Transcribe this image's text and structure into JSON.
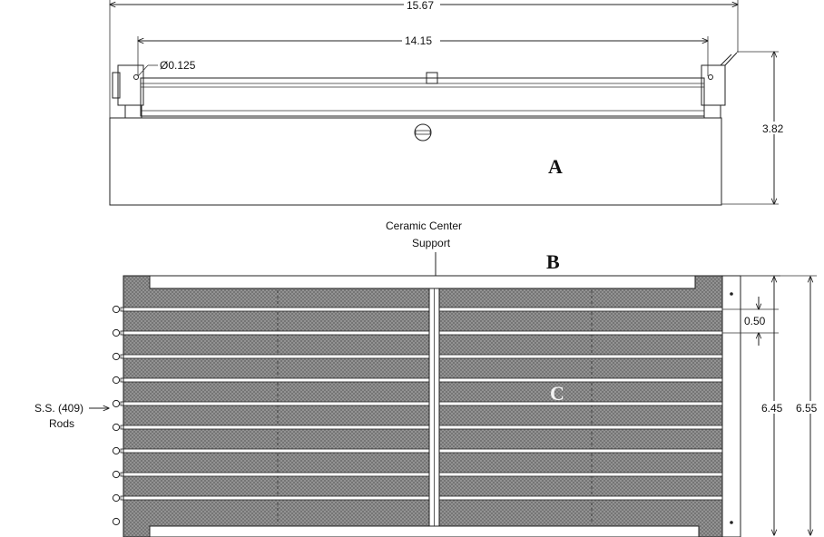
{
  "dimensions": {
    "overall_length": "15.67",
    "inner_length": "14.15",
    "hole_diameter": "Ø0.125",
    "side_height": "3.82",
    "rod_spacing": "0.50",
    "inner_width": "6.45",
    "overall_width": "6.55"
  },
  "callouts": {
    "center_support_line1": "Ceramic Center",
    "center_support_line2": "Support",
    "rods_line1": "S.S. (409)",
    "rods_line2": "Rods"
  },
  "labels": {
    "a": "A",
    "b": "B",
    "c": "C"
  },
  "colors": {
    "mesh": "#8f8f8f",
    "line": "#222222",
    "rod": "#ffffff"
  }
}
